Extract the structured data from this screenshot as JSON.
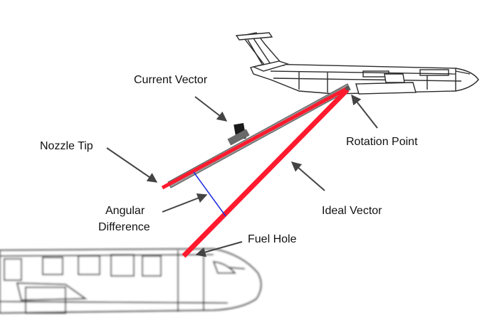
{
  "labels": {
    "current_vector": "Current Vector",
    "nozzle_tip": "Nozzle Tip",
    "rotation_point": "Rotation Point",
    "ideal_vector": "Ideal Vector",
    "angular_difference_line1": "Angular",
    "angular_difference_line2": "Difference",
    "fuel_hole": "Fuel Hole"
  },
  "colors": {
    "vector_line": "#ff1a2e",
    "angle_line": "#1b2bdc",
    "aircraft_outline": "#2a2a2a",
    "boom_body": "#9a9a9a",
    "arrow": "#444444"
  },
  "icons": {
    "tanker": "tanker-aircraft-icon",
    "receiver": "receiver-aircraft-icon"
  }
}
